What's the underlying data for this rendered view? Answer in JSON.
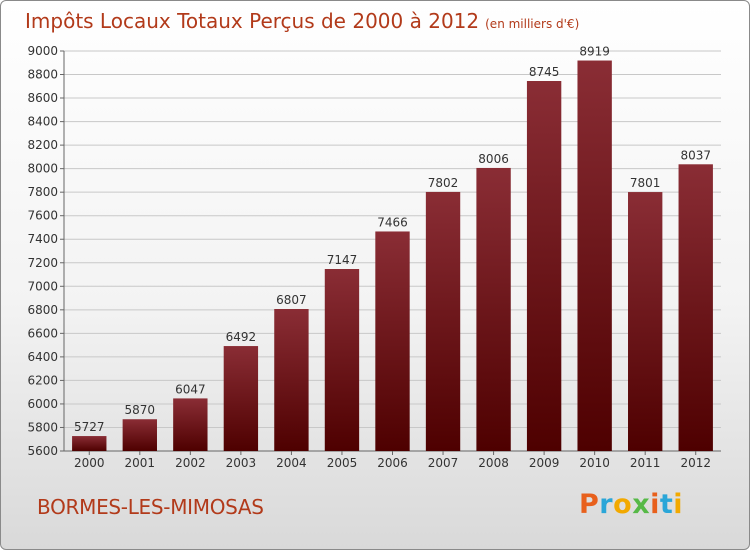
{
  "header": {
    "title": "Impôts Locaux Totaux Perçus de 2000 à 2012",
    "unit": "(en milliers d'€)"
  },
  "footer": {
    "commune": "BORMES-LES-MIMOSAS",
    "logo_text": "Proxiti",
    "logo_colors": [
      "#e8601c",
      "#2aa6d8",
      "#f2a900",
      "#56b947",
      "#e8601c",
      "#2aa6d8",
      "#f2a900"
    ]
  },
  "colors": {
    "bar_top": "#8a2d35",
    "bar_bottom": "#4e0000",
    "axis_text": "#333333",
    "grid": "#c8c8c8"
  },
  "chart_data": {
    "type": "bar",
    "title": "Impôts Locaux Totaux Perçus de 2000 à 2012",
    "ylabel": "",
    "xlabel": "",
    "categories": [
      "2000",
      "2001",
      "2002",
      "2003",
      "2004",
      "2005",
      "2006",
      "2007",
      "2008",
      "2009",
      "2010",
      "2011",
      "2012"
    ],
    "values": [
      5727,
      5870,
      6047,
      6492,
      6807,
      7147,
      7466,
      7802,
      8006,
      8745,
      8919,
      7801,
      8037
    ],
    "ylim": [
      5600,
      9000
    ],
    "yticks": [
      5600,
      5800,
      6000,
      6200,
      6400,
      6600,
      6800,
      7000,
      7200,
      7400,
      7600,
      7800,
      8000,
      8200,
      8400,
      8600,
      8800,
      9000
    ],
    "grid": true,
    "data_labels": true
  }
}
